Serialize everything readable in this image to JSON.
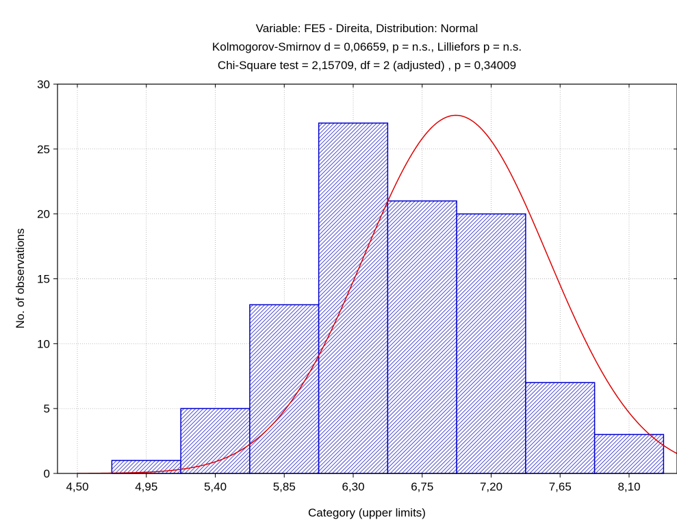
{
  "chart_data": {
    "type": "bar",
    "title": [
      "Variable: FE5 - Direita, Distribution: Normal",
      "Kolmogorov-Smirnov d = 0,06659, p = n.s., Lilliefors p = n.s.",
      "Chi-Square test = 2,15709, df = 2 (adjusted) , p = 0,34009"
    ],
    "xlabel": "Category (upper limits)",
    "ylabel": "No. of observations",
    "xlim": [
      4.5,
      8.5
    ],
    "ylim": [
      0,
      30
    ],
    "x_ticks": [
      {
        "value": 4.5,
        "label": "4,50"
      },
      {
        "value": 4.95,
        "label": "4,95"
      },
      {
        "value": 5.4,
        "label": "5,40"
      },
      {
        "value": 5.85,
        "label": "5,85"
      },
      {
        "value": 6.3,
        "label": "6,30"
      },
      {
        "value": 6.75,
        "label": "6,75"
      },
      {
        "value": 7.2,
        "label": "7,20"
      },
      {
        "value": 7.65,
        "label": "7,65"
      },
      {
        "value": 8.1,
        "label": "8,10"
      }
    ],
    "y_ticks": [
      {
        "value": 0,
        "label": "0"
      },
      {
        "value": 5,
        "label": "5"
      },
      {
        "value": 10,
        "label": "10"
      },
      {
        "value": 15,
        "label": "15"
      },
      {
        "value": 20,
        "label": "20"
      },
      {
        "value": 25,
        "label": "25"
      },
      {
        "value": 30,
        "label": "30"
      }
    ],
    "bins": [
      {
        "lower": 4.725,
        "upper": 5.175,
        "count": 1
      },
      {
        "lower": 5.175,
        "upper": 5.625,
        "count": 5
      },
      {
        "lower": 5.625,
        "upper": 6.075,
        "count": 13
      },
      {
        "lower": 6.075,
        "upper": 6.525,
        "count": 27
      },
      {
        "lower": 6.525,
        "upper": 6.975,
        "count": 21
      },
      {
        "lower": 6.975,
        "upper": 7.425,
        "count": 20
      },
      {
        "lower": 7.425,
        "upper": 7.875,
        "count": 7
      },
      {
        "lower": 7.875,
        "upper": 8.325,
        "count": 3
      }
    ],
    "normal_fit": {
      "peak_x": 6.97,
      "peak_y": 27.6,
      "sd": 0.6
    },
    "grid": true,
    "bar_fill_color": "#1f1fcc",
    "bar_stroke_color": "#0000cc",
    "curve_color": "#dd0000"
  }
}
